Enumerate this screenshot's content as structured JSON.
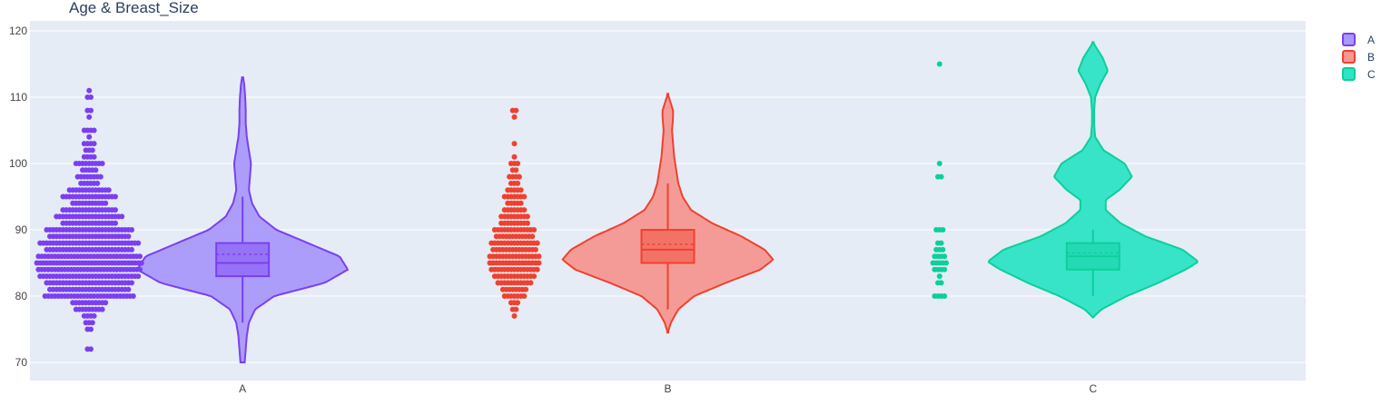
{
  "chart_data": {
    "type": "violin",
    "title": "Age & Breast_Size",
    "xlabel": "",
    "ylabel": "",
    "ylim": [
      69,
      121
    ],
    "yticks": [
      70,
      80,
      90,
      100,
      110,
      120
    ],
    "categories": [
      "A",
      "B",
      "C"
    ],
    "grid": true,
    "legend_position": "top-right",
    "series": [
      {
        "name": "A",
        "color": "#7b3ff2",
        "fill": "#aa99fb",
        "box": {
          "q1": 83,
          "median": 85,
          "q3": 88,
          "mean": 86.3,
          "whisker_low": 76,
          "whisker_high": 95
        },
        "range": [
          70,
          113
        ],
        "density": [
          [
            70,
            0.02
          ],
          [
            72,
            0.03
          ],
          [
            74,
            0.04
          ],
          [
            76,
            0.06
          ],
          [
            78,
            0.12
          ],
          [
            80,
            0.3
          ],
          [
            82,
            0.78
          ],
          [
            84,
            1.0
          ],
          [
            86,
            0.92
          ],
          [
            88,
            0.62
          ],
          [
            90,
            0.32
          ],
          [
            92,
            0.16
          ],
          [
            94,
            0.09
          ],
          [
            96,
            0.06
          ],
          [
            98,
            0.07
          ],
          [
            100,
            0.08
          ],
          [
            102,
            0.06
          ],
          [
            104,
            0.04
          ],
          [
            106,
            0.03
          ],
          [
            108,
            0.03
          ],
          [
            110,
            0.025
          ],
          [
            112,
            0.015
          ],
          [
            113,
            0.005
          ]
        ],
        "points": [
          {
            "y": 111,
            "n": 1
          },
          {
            "y": 110,
            "n": 2
          },
          {
            "y": 108,
            "n": 2
          },
          {
            "y": 107,
            "n": 1
          },
          {
            "y": 105,
            "n": 4
          },
          {
            "y": 104,
            "n": 1
          },
          {
            "y": 103,
            "n": 4
          },
          {
            "y": 102,
            "n": 3
          },
          {
            "y": 101,
            "n": 4
          },
          {
            "y": 100,
            "n": 9
          },
          {
            "y": 99,
            "n": 5
          },
          {
            "y": 98,
            "n": 8
          },
          {
            "y": 97,
            "n": 6
          },
          {
            "y": 96,
            "n": 13
          },
          {
            "y": 95,
            "n": 17
          },
          {
            "y": 94,
            "n": 11
          },
          {
            "y": 93,
            "n": 17
          },
          {
            "y": 92,
            "n": 21
          },
          {
            "y": 91,
            "n": 17
          },
          {
            "y": 90,
            "n": 27
          },
          {
            "y": 89,
            "n": 25
          },
          {
            "y": 88,
            "n": 31
          },
          {
            "y": 87,
            "n": 27
          },
          {
            "y": 86,
            "n": 32
          },
          {
            "y": 85,
            "n": 33
          },
          {
            "y": 84,
            "n": 32
          },
          {
            "y": 83,
            "n": 31
          },
          {
            "y": 82,
            "n": 27
          },
          {
            "y": 81,
            "n": 25
          },
          {
            "y": 80,
            "n": 28
          },
          {
            "y": 79,
            "n": 11
          },
          {
            "y": 78,
            "n": 9
          },
          {
            "y": 77,
            "n": 4
          },
          {
            "y": 76,
            "n": 3
          },
          {
            "y": 75,
            "n": 2
          },
          {
            "y": 72,
            "n": 2
          }
        ]
      },
      {
        "name": "B",
        "color": "#f1402e",
        "fill": "#f69791",
        "box": {
          "q1": 85,
          "median": 87,
          "q3": 90,
          "mean": 87.8,
          "whisker_low": 78,
          "whisker_high": 97
        },
        "range": [
          74.5,
          110.5
        ],
        "density": [
          [
            74.5,
            0.0
          ],
          [
            76,
            0.03
          ],
          [
            78,
            0.1
          ],
          [
            80,
            0.25
          ],
          [
            82,
            0.55
          ],
          [
            84,
            0.88
          ],
          [
            85.5,
            1.0
          ],
          [
            87,
            0.92
          ],
          [
            89,
            0.7
          ],
          [
            91,
            0.42
          ],
          [
            93,
            0.22
          ],
          [
            95,
            0.14
          ],
          [
            97,
            0.1
          ],
          [
            99,
            0.08
          ],
          [
            101,
            0.06
          ],
          [
            103,
            0.05
          ],
          [
            105,
            0.04
          ],
          [
            107,
            0.05
          ],
          [
            108,
            0.05
          ],
          [
            109.5,
            0.02
          ],
          [
            110.5,
            0.0
          ]
        ],
        "points": [
          {
            "y": 108,
            "n": 2
          },
          {
            "y": 107,
            "n": 1
          },
          {
            "y": 103,
            "n": 1
          },
          {
            "y": 101,
            "n": 1
          },
          {
            "y": 100,
            "n": 3
          },
          {
            "y": 99,
            "n": 2
          },
          {
            "y": 98,
            "n": 4
          },
          {
            "y": 97,
            "n": 3
          },
          {
            "y": 96,
            "n": 5
          },
          {
            "y": 95,
            "n": 7
          },
          {
            "y": 94,
            "n": 5
          },
          {
            "y": 93,
            "n": 7
          },
          {
            "y": 92,
            "n": 9
          },
          {
            "y": 91,
            "n": 9
          },
          {
            "y": 90,
            "n": 13
          },
          {
            "y": 89,
            "n": 12
          },
          {
            "y": 88,
            "n": 15
          },
          {
            "y": 87,
            "n": 14
          },
          {
            "y": 86,
            "n": 16
          },
          {
            "y": 85,
            "n": 16
          },
          {
            "y": 84,
            "n": 15
          },
          {
            "y": 83,
            "n": 13
          },
          {
            "y": 82,
            "n": 11
          },
          {
            "y": 81,
            "n": 8
          },
          {
            "y": 80,
            "n": 7
          },
          {
            "y": 79,
            "n": 3
          },
          {
            "y": 78,
            "n": 2
          },
          {
            "y": 77,
            "n": 1
          }
        ]
      },
      {
        "name": "C",
        "color": "#0ccf9b",
        "fill": "#2de4c5",
        "box": {
          "q1": 84,
          "median": 86,
          "q3": 88,
          "mean": 86.5,
          "whisker_low": 80,
          "whisker_high": 90
        },
        "range": [
          76.8,
          118.3
        ],
        "density": [
          [
            76.8,
            0.0
          ],
          [
            78,
            0.08
          ],
          [
            80,
            0.32
          ],
          [
            82,
            0.62
          ],
          [
            84,
            0.88
          ],
          [
            85.2,
            1.0
          ],
          [
            87,
            0.85
          ],
          [
            89,
            0.5
          ],
          [
            91,
            0.26
          ],
          [
            93,
            0.12
          ],
          [
            94.5,
            0.12
          ],
          [
            96,
            0.25
          ],
          [
            98,
            0.37
          ],
          [
            100,
            0.3
          ],
          [
            102,
            0.1
          ],
          [
            104,
            0.02
          ],
          [
            106,
            0.01
          ],
          [
            108,
            0.01
          ],
          [
            110,
            0.02
          ],
          [
            112,
            0.07
          ],
          [
            114,
            0.14
          ],
          [
            116,
            0.09
          ],
          [
            117.5,
            0.03
          ],
          [
            118.3,
            0.0
          ]
        ],
        "points": [
          {
            "y": 115,
            "n": 1
          },
          {
            "y": 100,
            "n": 1
          },
          {
            "y": 98,
            "n": 2
          },
          {
            "y": 90,
            "n": 3
          },
          {
            "y": 88,
            "n": 2
          },
          {
            "y": 87,
            "n": 3
          },
          {
            "y": 86,
            "n": 4
          },
          {
            "y": 85,
            "n": 5
          },
          {
            "y": 84,
            "n": 4
          },
          {
            "y": 83,
            "n": 1
          },
          {
            "y": 82,
            "n": 2
          },
          {
            "y": 80,
            "n": 4
          }
        ]
      }
    ]
  },
  "legend": {
    "items": [
      {
        "label": "A"
      },
      {
        "label": "B"
      },
      {
        "label": "C"
      }
    ]
  }
}
